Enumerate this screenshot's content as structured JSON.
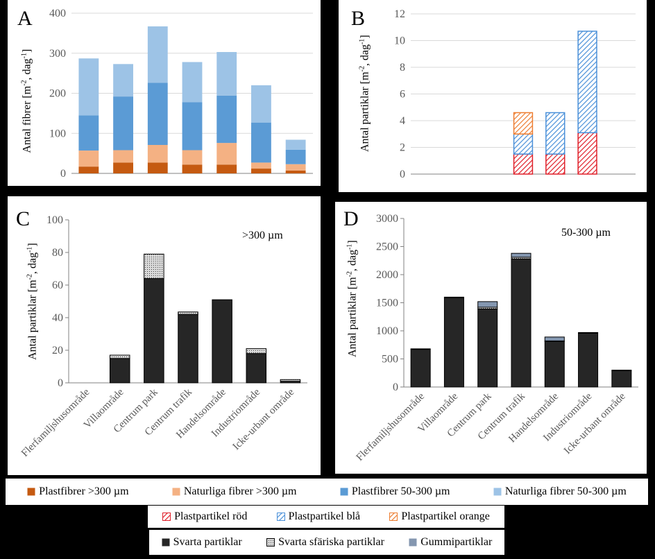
{
  "categories": [
    "Flerfamiljshusområde",
    "Villaområde",
    "Centrum park",
    "Centrum trafik",
    "Handelsområde",
    "Industriområde",
    "Icke-urbant område"
  ],
  "panels": {
    "A": {
      "label": "A",
      "ylabel_main": "Antal fibrer [m",
      "ylabel_sup1": "-2",
      "ylabel_mid": ", dag",
      "ylabel_sup2": "-1",
      "ylabel_end": "]",
      "annotation": ""
    },
    "B": {
      "label": "B",
      "ylabel_main": "Antal partiklar [m",
      "ylabel_sup1": "-2",
      "ylabel_mid": ", dag",
      "ylabel_sup2": "-1",
      "ylabel_end": "]",
      "annotation": ""
    },
    "C": {
      "label": "C",
      "ylabel_main": "Antal partiklar [m",
      "ylabel_sup1": "-2",
      "ylabel_mid": ", dag",
      "ylabel_sup2": "-1",
      "ylabel_end": "]",
      "annotation": ">300 µm"
    },
    "D": {
      "label": "D",
      "ylabel_main": "Antal partiklar [m",
      "ylabel_sup1": "-2",
      "ylabel_mid": ", dag",
      "ylabel_sup2": "-1",
      "ylabel_end": "]",
      "annotation": "50-300 µm"
    }
  },
  "legends": {
    "fibers": [
      {
        "label": "Plastfibrer >300 µm",
        "color": "#c55a11",
        "pattern": "solid"
      },
      {
        "label": "Naturliga fibrer >300 µm",
        "color": "#f4b183",
        "pattern": "solid"
      },
      {
        "label": "Plastfibrer 50-300 µm",
        "color": "#5b9bd5",
        "pattern": "solid"
      },
      {
        "label": "Naturliga fibrer 50-300 µm",
        "color": "#9dc3e6",
        "pattern": "solid"
      }
    ],
    "particles": [
      {
        "label": "Plastpartikel röd",
        "color": "#e0202a",
        "pattern": "hatch"
      },
      {
        "label": "Plastpartikel blå",
        "color": "#4a90d9",
        "pattern": "hatch"
      },
      {
        "label": "Plastpartikel orange",
        "color": "#ed7d31",
        "pattern": "hatch"
      }
    ],
    "black": [
      {
        "label": "Svarta partiklar",
        "color": "#262626",
        "pattern": "solid"
      },
      {
        "label": "Svarta sfäriska partiklar",
        "color": "#bfbfbf",
        "pattern": "dots"
      },
      {
        "label": "Gummipartiklar",
        "color": "#8497b0",
        "pattern": "solid"
      }
    ]
  },
  "chart_data": [
    {
      "panel": "A",
      "type": "bar",
      "stacked": true,
      "title": "",
      "xlabel": "",
      "ylabel": "Antal fibrer [m-2, dag-1]",
      "ylim": [
        0,
        400
      ],
      "yticks": [
        0,
        100,
        200,
        300,
        400
      ],
      "categories": [
        "Flerfamiljshusområde",
        "Villaområde",
        "Centrum park",
        "Centrum trafik",
        "Handelsområde",
        "Industriområde",
        "Icke-urbant område"
      ],
      "series": [
        {
          "name": "Plastfibrer >300 µm",
          "color": "#c55a11",
          "pattern": "solid",
          "values": [
            17,
            27,
            27,
            22,
            22,
            12,
            7
          ]
        },
        {
          "name": "Naturliga fibrer >300 µm",
          "color": "#f4b183",
          "pattern": "solid",
          "values": [
            40,
            31,
            44,
            36,
            54,
            15,
            16
          ]
        },
        {
          "name": "Plastfibrer 50-300 µm",
          "color": "#5b9bd5",
          "pattern": "solid",
          "values": [
            88,
            134,
            155,
            120,
            118,
            100,
            36
          ]
        },
        {
          "name": "Naturliga fibrer 50-300 µm",
          "color": "#9dc3e6",
          "pattern": "solid",
          "values": [
            142,
            81,
            141,
            100,
            109,
            93,
            25
          ]
        }
      ]
    },
    {
      "panel": "B",
      "type": "bar",
      "stacked": true,
      "title": "",
      "xlabel": "",
      "ylabel": "Antal partiklar [m-2, dag-1]",
      "ylim": [
        0,
        12
      ],
      "yticks": [
        0,
        2,
        4,
        6,
        8,
        10,
        12
      ],
      "categories": [
        "Flerfamiljshusområde",
        "Villaområde",
        "Centrum park",
        "Centrum trafik",
        "Handelsområde",
        "Industriområde",
        "Icke-urbant område"
      ],
      "series": [
        {
          "name": "Plastpartikel röd",
          "color": "#e0202a",
          "pattern": "hatch",
          "values": [
            0,
            0,
            0,
            1.5,
            1.5,
            3.1,
            0
          ]
        },
        {
          "name": "Plastpartikel blå",
          "color": "#4a90d9",
          "pattern": "hatch",
          "values": [
            0,
            0,
            0,
            1.5,
            3.1,
            7.6,
            0
          ]
        },
        {
          "name": "Plastpartikel orange",
          "color": "#ed7d31",
          "pattern": "hatch",
          "values": [
            0,
            0,
            0,
            1.6,
            0,
            0,
            0
          ]
        }
      ]
    },
    {
      "panel": "C",
      "type": "bar",
      "stacked": true,
      "title": "",
      "xlabel": "",
      "ylabel": "Antal partiklar [m-2, dag-1]",
      "ylim": [
        0,
        100
      ],
      "yticks": [
        0,
        20,
        40,
        60,
        80,
        100
      ],
      "categories": [
        "Flerfamiljshusområde",
        "Villaområde",
        "Centrum park",
        "Centrum trafik",
        "Handelsområde",
        "Industriområde",
        "Icke-urbant område"
      ],
      "series": [
        {
          "name": "Svarta partiklar",
          "color": "#262626",
          "pattern": "solid",
          "values": [
            0,
            15,
            64,
            42,
            51,
            18,
            1
          ]
        },
        {
          "name": "Svarta sfäriska partiklar",
          "color": "#bfbfbf",
          "pattern": "dots",
          "values": [
            0,
            2,
            15,
            1.5,
            0,
            3,
            1
          ]
        },
        {
          "name": "Gummipartiklar",
          "color": "#8497b0",
          "pattern": "solid",
          "values": [
            0,
            0,
            0,
            0,
            0,
            0,
            0
          ]
        }
      ]
    },
    {
      "panel": "D",
      "type": "bar",
      "stacked": true,
      "title": "",
      "xlabel": "",
      "ylabel": "Antal partiklar [m-2, dag-1]",
      "ylim": [
        0,
        3000
      ],
      "yticks": [
        0,
        500,
        1000,
        1500,
        2000,
        2500,
        3000
      ],
      "categories": [
        "Flerfamiljshusområde",
        "Villaområde",
        "Centrum park",
        "Centrum trafik",
        "Handelsområde",
        "Industriområde",
        "Icke-urbant område"
      ],
      "series": [
        {
          "name": "Svarta partiklar",
          "color": "#262626",
          "pattern": "solid",
          "values": [
            670,
            1590,
            1390,
            2280,
            810,
            960,
            290
          ]
        },
        {
          "name": "Svarta sfäriska partiklar",
          "color": "#bfbfbf",
          "pattern": "dots",
          "values": [
            10,
            10,
            30,
            30,
            10,
            10,
            10
          ]
        },
        {
          "name": "Gummipartiklar",
          "color": "#8497b0",
          "pattern": "solid",
          "values": [
            0,
            0,
            100,
            70,
            70,
            0,
            0
          ]
        }
      ]
    }
  ]
}
